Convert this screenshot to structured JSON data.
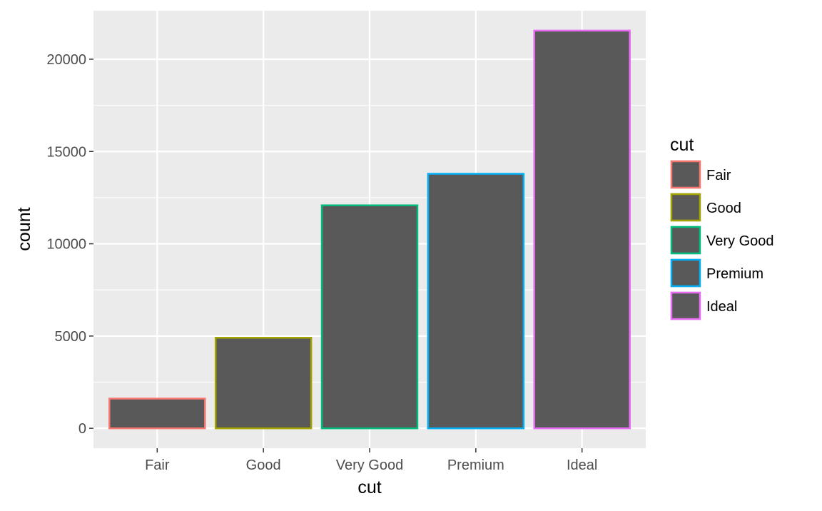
{
  "chart_data": {
    "type": "bar",
    "categories": [
      "Fair",
      "Good",
      "Very Good",
      "Premium",
      "Ideal"
    ],
    "values": [
      1610,
      4906,
      12082,
      13791,
      21551
    ],
    "xlabel": "cut",
    "ylabel": "count",
    "ylim": [
      -1077.55,
      22628.55
    ],
    "yticks": [
      0,
      5000,
      10000,
      15000,
      20000
    ],
    "ytick_labels": [
      "0",
      "5000",
      "10000",
      "15000",
      "20000"
    ],
    "grid": true,
    "bar_fill": "#595959",
    "panel_background": "#ebebeb",
    "grid_color": "#ffffff",
    "outline_colors": [
      "#F8766D",
      "#A3A500",
      "#00BF7D",
      "#00B0F6",
      "#E76BF3"
    ],
    "legend": {
      "title": "cut",
      "position": "right",
      "entries": [
        "Fair",
        "Good",
        "Very Good",
        "Premium",
        "Ideal"
      ]
    }
  }
}
